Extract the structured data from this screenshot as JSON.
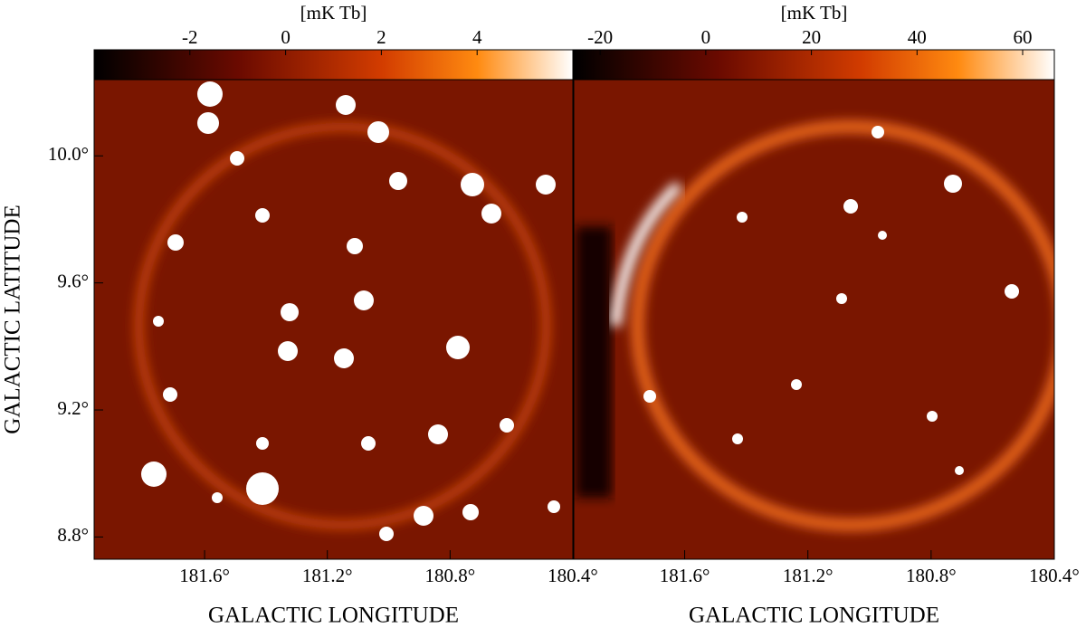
{
  "chart_data": [
    {
      "type": "image",
      "colorbar_label": "[mK Tb]",
      "clim": [
        -4,
        6
      ],
      "cticks": [
        -2,
        0,
        2,
        4
      ],
      "xlabel": "GALACTIC LONGITUDE",
      "ylabel": "GALACTIC LATITUDE",
      "xlim": [
        181.96,
        180.4
      ],
      "xticks": [
        {
          "value": 181.6,
          "label": "181.6°"
        },
        {
          "value": 181.2,
          "label": "181.2°"
        },
        {
          "value": 180.8,
          "label": "180.8°"
        },
        {
          "value": 180.4,
          "label": "180.4°"
        }
      ],
      "ylim": [
        8.73,
        10.24
      ],
      "yticks": [
        {
          "value": 8.8,
          "label": "8.8°"
        },
        {
          "value": 9.2,
          "label": "9.2°"
        },
        {
          "value": 9.6,
          "label": "9.6°"
        },
        {
          "value": 10.0,
          "label": "10.0°"
        }
      ]
    },
    {
      "type": "image",
      "colorbar_label": "[mK Tb]",
      "clim": [
        -25,
        66
      ],
      "cticks": [
        -20,
        0,
        20,
        40,
        60
      ],
      "xlabel": "GALACTIC LONGITUDE",
      "xlim": [
        181.96,
        180.4
      ],
      "xticks": [
        {
          "value": 181.6,
          "label": "181.6°"
        },
        {
          "value": 181.2,
          "label": "181.2°"
        },
        {
          "value": 180.8,
          "label": "180.8°"
        },
        {
          "value": 180.4,
          "label": "180.4°"
        }
      ],
      "ylim": [
        8.73,
        10.24
      ]
    }
  ]
}
